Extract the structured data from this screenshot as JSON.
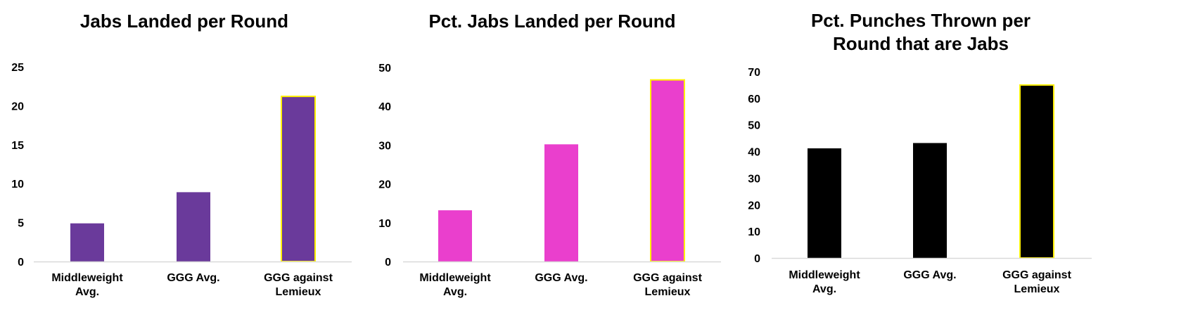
{
  "chart_data": [
    {
      "type": "bar",
      "title": [
        "Jabs Landed per Round"
      ],
      "xlabel": "",
      "ylabel": "",
      "categories": [
        [
          "Middleweight",
          "Avg."
        ],
        [
          "GGG Avg."
        ],
        [
          "GGG against",
          "Lemieux"
        ]
      ],
      "values": [
        4.9,
        8.9,
        21.2
      ],
      "ylim": [
        0,
        25
      ],
      "yticks": [
        0,
        5,
        10,
        15,
        20,
        25
      ],
      "bar_color": "#6a3a9b",
      "highlight_outline_color": "#fff000",
      "highlighted_category_index": 2,
      "grid": false
    },
    {
      "type": "bar",
      "title": [
        "Pct. Jabs Landed per Round"
      ],
      "xlabel": "",
      "ylabel": "",
      "categories": [
        [
          "Middleweight",
          "Avg."
        ],
        [
          "GGG Avg."
        ],
        [
          "GGG against",
          "Lemieux"
        ]
      ],
      "values": [
        13.2,
        30.2,
        46.8
      ],
      "ylim": [
        0,
        50
      ],
      "yticks": [
        0,
        10,
        20,
        30,
        40,
        50
      ],
      "bar_color": "#ea3fcd",
      "highlight_outline_color": "#fff000",
      "highlighted_category_index": 2,
      "grid": false
    },
    {
      "type": "bar",
      "title": [
        "Pct. Punches Thrown per",
        "Round that are Jabs"
      ],
      "xlabel": "",
      "ylabel": "",
      "categories": [
        [
          "Middleweight",
          "Avg."
        ],
        [
          "GGG Avg."
        ],
        [
          "GGG against",
          "Lemieux"
        ]
      ],
      "values": [
        41.2,
        43.2,
        65
      ],
      "ylim": [
        0,
        70
      ],
      "yticks": [
        0,
        10,
        20,
        30,
        40,
        50,
        60,
        70
      ],
      "bar_color": "#000000",
      "highlight_outline_color": "#fff000",
      "highlighted_category_index": 2,
      "grid": false
    }
  ]
}
